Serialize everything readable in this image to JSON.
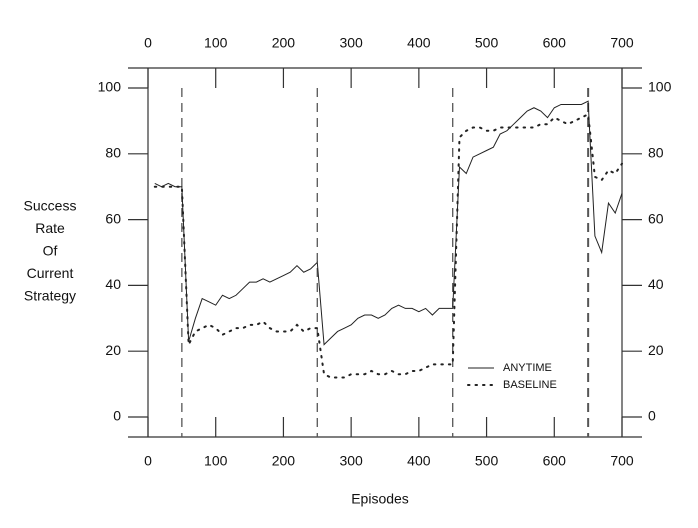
{
  "chart_data": {
    "type": "line",
    "x_label": "Episodes",
    "y_label": [
      "Success",
      "Rate",
      "Of",
      "Current",
      "Strategy"
    ],
    "x": [
      10,
      20,
      30,
      40,
      50,
      60,
      70,
      80,
      90,
      100,
      110,
      120,
      130,
      140,
      150,
      160,
      170,
      180,
      190,
      200,
      210,
      220,
      230,
      240,
      250,
      260,
      270,
      280,
      290,
      300,
      310,
      320,
      330,
      340,
      350,
      360,
      370,
      380,
      390,
      400,
      410,
      420,
      430,
      440,
      450,
      460,
      470,
      480,
      490,
      500,
      510,
      520,
      530,
      540,
      550,
      560,
      570,
      580,
      590,
      600,
      610,
      620,
      630,
      640,
      650,
      660,
      670,
      680,
      690,
      700
    ],
    "series": [
      {
        "name": "ANYTIME",
        "color": "#222222",
        "style": "solid",
        "values": [
          71,
          70,
          71,
          70,
          70,
          23,
          30,
          36,
          35,
          34,
          37,
          36,
          37,
          39,
          41,
          41,
          42,
          41,
          42,
          43,
          44,
          46,
          44,
          45,
          47,
          22,
          24,
          26,
          27,
          28,
          30,
          31,
          31,
          30,
          31,
          33,
          34,
          33,
          33,
          32,
          33,
          31,
          33,
          33,
          33,
          76,
          74,
          79,
          80,
          81,
          82,
          86,
          87,
          89,
          91,
          93,
          94,
          93,
          91,
          94,
          95,
          95,
          95,
          95,
          96,
          55,
          50,
          65,
          62,
          68
        ]
      },
      {
        "name": "BASELINE",
        "color": "#222222",
        "style": "dotted",
        "values": [
          70,
          70,
          70,
          70,
          70,
          22,
          26,
          27,
          28,
          27,
          25,
          26,
          27,
          27,
          28,
          28,
          29,
          27,
          26,
          26,
          26,
          28,
          26,
          27,
          27,
          13,
          12,
          12,
          12,
          13,
          13,
          13,
          14,
          13,
          13,
          14,
          13,
          13,
          14,
          14,
          15,
          16,
          16,
          16,
          16,
          85,
          87,
          88,
          88,
          87,
          87,
          88,
          88,
          88,
          88,
          88,
          88,
          89,
          89,
          91,
          90,
          89,
          90,
          91,
          92,
          73,
          72,
          75,
          74,
          77
        ]
      }
    ],
    "vlines": [
      50,
      250,
      450,
      650
    ],
    "xlim": [
      0,
      700
    ],
    "xticks": [
      0,
      100,
      200,
      300,
      400,
      500,
      600,
      700
    ],
    "ylim": [
      0,
      100
    ],
    "yticks": [
      0,
      20,
      40,
      60,
      80,
      100
    ],
    "legend": "lower-right"
  }
}
